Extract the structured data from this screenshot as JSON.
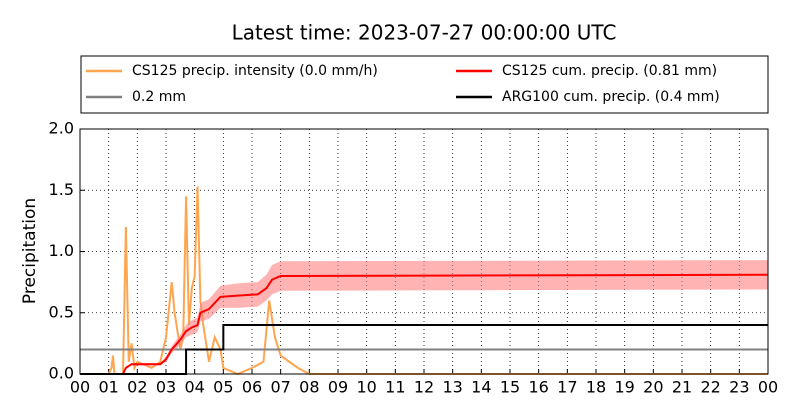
{
  "chart_data": {
    "type": "line",
    "title": "Latest time: 2023-07-27 00:00:00 UTC",
    "y_label": "Precipitation",
    "xlim": [
      0,
      24
    ],
    "xticks": [
      {
        "value": 0,
        "label": "00"
      },
      {
        "value": 1,
        "label": "01"
      },
      {
        "value": 2,
        "label": "02"
      },
      {
        "value": 3,
        "label": "03"
      },
      {
        "value": 4,
        "label": "04"
      },
      {
        "value": 5,
        "label": "05"
      },
      {
        "value": 6,
        "label": "06"
      },
      {
        "value": 7,
        "label": "07"
      },
      {
        "value": 8,
        "label": "08"
      },
      {
        "value": 9,
        "label": "09"
      },
      {
        "value": 10,
        "label": "10"
      },
      {
        "value": 11,
        "label": "11"
      },
      {
        "value": 12,
        "label": "12"
      },
      {
        "value": 13,
        "label": "13"
      },
      {
        "value": 14,
        "label": "14"
      },
      {
        "value": 15,
        "label": "15"
      },
      {
        "value": 16,
        "label": "16"
      },
      {
        "value": 17,
        "label": "17"
      },
      {
        "value": 18,
        "label": "18"
      },
      {
        "value": 19,
        "label": "19"
      },
      {
        "value": 20,
        "label": "20"
      },
      {
        "value": 21,
        "label": "21"
      },
      {
        "value": 22,
        "label": "22"
      },
      {
        "value": 23,
        "label": "23"
      },
      {
        "value": 24,
        "label": "00"
      }
    ],
    "ylim": [
      0,
      2
    ],
    "yticks": [
      {
        "value": 0,
        "label": "0.0"
      },
      0.5,
      {
        "value": 1,
        "label": "1.0"
      },
      1.5,
      {
        "value": 2,
        "label": "2.0"
      }
    ],
    "grid": true,
    "legend": "top",
    "series": [
      {
        "name": "CS125 precip. intensity (0.0 mm/h)",
        "color": "#ffa54f",
        "x": [
          0,
          1.0,
          1.1,
          1.15,
          1.2,
          1.5,
          1.6,
          1.7,
          1.8,
          1.9,
          2.0,
          2.5,
          2.8,
          3.0,
          3.2,
          3.3,
          3.5,
          3.6,
          3.7,
          3.8,
          3.9,
          4.0,
          4.1,
          4.2,
          4.3,
          4.5,
          4.7,
          4.9,
          5.0,
          5.5,
          6.0,
          6.4,
          6.6,
          6.8,
          7.0,
          7.3,
          7.6,
          8.0,
          24
        ],
        "values": [
          0,
          0,
          0.05,
          0.15,
          0,
          0,
          1.2,
          0.1,
          0.25,
          0.05,
          0.1,
          0.05,
          0.1,
          0.3,
          0.75,
          0.5,
          0.2,
          0.3,
          1.45,
          0.4,
          0.7,
          0.8,
          1.53,
          0.6,
          0.4,
          0.1,
          0.3,
          0.2,
          0.05,
          0,
          0.05,
          0.1,
          0.6,
          0.3,
          0.15,
          0.1,
          0.05,
          0,
          0
        ]
      },
      {
        "name": "0.2 mm",
        "color": "#808080",
        "x": [
          0,
          24
        ],
        "values": [
          0.2,
          0.2
        ]
      },
      {
        "name": "CS125 cum. precip. (0.81 mm)",
        "color": "#ff0000",
        "band_color": "#ff8080",
        "x": [
          0,
          1.5,
          1.6,
          1.8,
          2.8,
          3.0,
          3.2,
          3.5,
          3.7,
          3.9,
          4.1,
          4.2,
          4.5,
          4.9,
          5.5,
          6.2,
          6.5,
          6.7,
          7.0,
          24
        ],
        "values": [
          0,
          0,
          0.05,
          0.08,
          0.08,
          0.12,
          0.2,
          0.28,
          0.35,
          0.38,
          0.4,
          0.5,
          0.53,
          0.63,
          0.64,
          0.65,
          0.7,
          0.77,
          0.8,
          0.81
        ],
        "upper": [
          0,
          0,
          0.06,
          0.09,
          0.09,
          0.14,
          0.23,
          0.32,
          0.4,
          0.44,
          0.46,
          0.58,
          0.61,
          0.72,
          0.74,
          0.75,
          0.81,
          0.89,
          0.92,
          0.93
        ],
        "lower": [
          0,
          0,
          0.04,
          0.07,
          0.07,
          0.1,
          0.17,
          0.24,
          0.3,
          0.32,
          0.34,
          0.43,
          0.45,
          0.54,
          0.54,
          0.55,
          0.6,
          0.65,
          0.68,
          0.69
        ]
      },
      {
        "name": "ARG100 cum. precip. (0.4 mm)",
        "color": "#000000",
        "x": [
          0,
          3.7,
          3.7,
          5.0,
          5.0,
          24
        ],
        "values": [
          0,
          0,
          0.2,
          0.2,
          0.4,
          0.4
        ]
      }
    ]
  }
}
